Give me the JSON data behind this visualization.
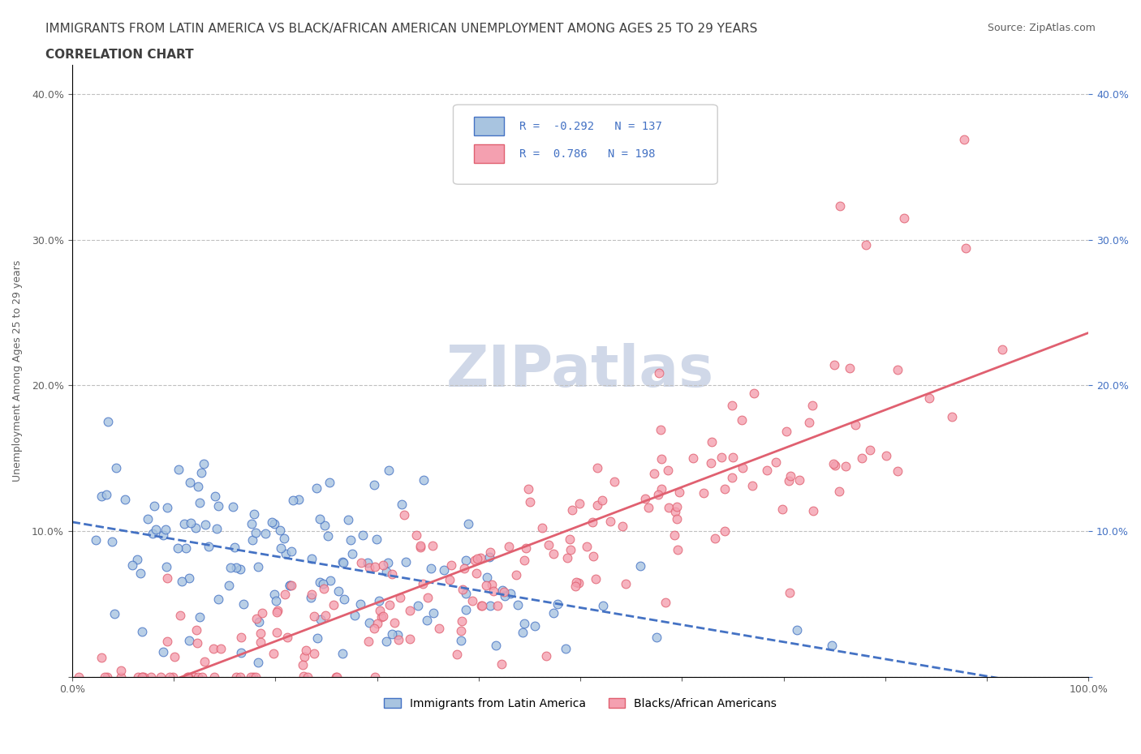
{
  "title_line1": "IMMIGRANTS FROM LATIN AMERICA VS BLACK/AFRICAN AMERICAN UNEMPLOYMENT AMONG AGES 25 TO 29 YEARS",
  "title_line2": "CORRELATION CHART",
  "source_text": "Source: ZipAtlas.com",
  "xlabel": "",
  "ylabel": "Unemployment Among Ages 25 to 29 years",
  "watermark": "ZIPatlas",
  "xmin": 0.0,
  "xmax": 1.0,
  "ymin": 0.0,
  "ymax": 0.42,
  "yticks": [
    0.0,
    0.1,
    0.2,
    0.3,
    0.4
  ],
  "ytick_labels": [
    "",
    "10.0%",
    "20.0%",
    "30.0%",
    "40.0%"
  ],
  "xticks": [
    0.0,
    0.1,
    0.2,
    0.3,
    0.4,
    0.5,
    0.6,
    0.7,
    0.8,
    0.9,
    1.0
  ],
  "xtick_labels": [
    "0.0%",
    "",
    "",
    "",
    "",
    "",
    "",
    "",
    "",
    "",
    "100.0%"
  ],
  "blue_color": "#A8C4E0",
  "pink_color": "#F4A0B0",
  "blue_line_color": "#4472C4",
  "pink_line_color": "#E06070",
  "blue_R": -0.292,
  "blue_N": 137,
  "pink_R": 0.786,
  "pink_N": 198,
  "legend_label_blue": "Immigrants from Latin America",
  "legend_label_pink": "Blacks/African Americans",
  "title_color": "#404040",
  "axis_color": "#606060",
  "grid_color": "#C0C0C0",
  "background_color": "#FFFFFF",
  "watermark_color": "#D0D8E8",
  "title_fontsize": 11,
  "subtitle_fontsize": 11,
  "source_fontsize": 9,
  "ylabel_fontsize": 9,
  "tick_fontsize": 9,
  "legend_fontsize": 10,
  "watermark_fontsize": 52
}
